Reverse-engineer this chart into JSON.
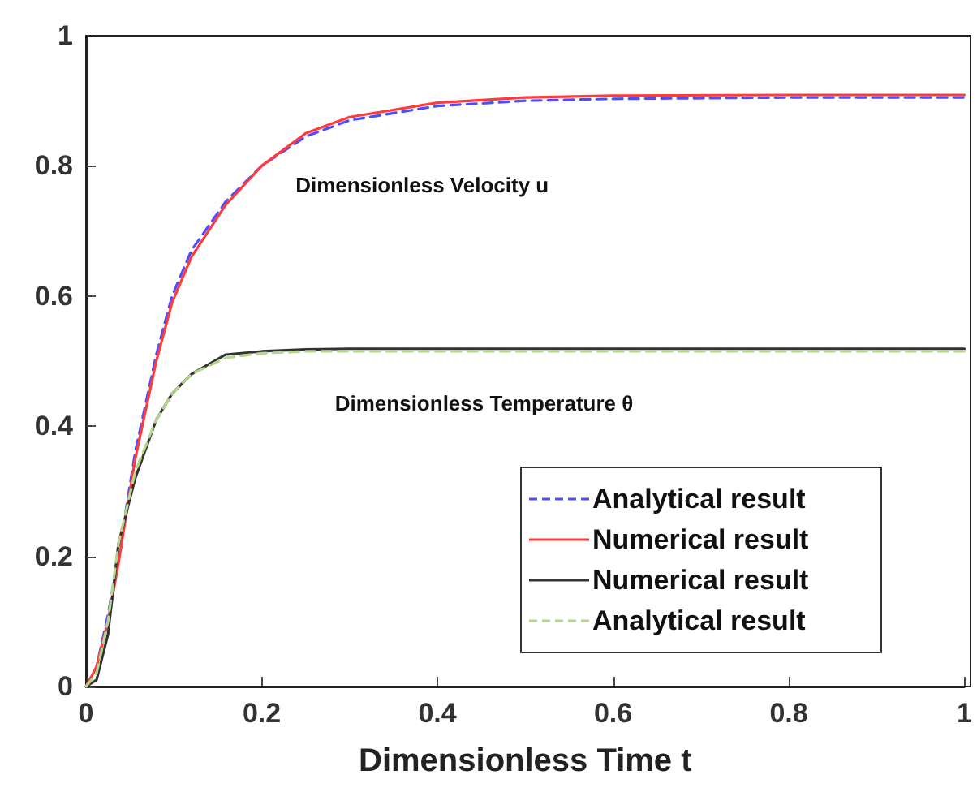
{
  "chart_data": {
    "type": "line",
    "xlabel": "Dimensionless Time t",
    "xlim": [
      0,
      1
    ],
    "xticks": [
      0,
      0.2,
      0.4,
      0.6,
      0.8,
      1
    ],
    "ylim": [
      0,
      1
    ],
    "yticks": [
      0,
      0.2,
      0.4,
      0.6,
      0.8,
      1
    ],
    "grid": false,
    "legend": "bottom right",
    "marker": "none",
    "x": [
      0,
      0.012,
      0.025,
      0.037,
      0.056,
      0.08,
      0.098,
      0.12,
      0.159,
      0.2,
      0.25,
      0.3,
      0.4,
      0.5,
      0.6,
      0.8,
      1.0
    ],
    "series": [
      {
        "name": "Analytical result",
        "color": "#4d4dff",
        "line_style": "dashed",
        "values": [
          0,
          0.03,
          0.11,
          0.2,
          0.36,
          0.51,
          0.6,
          0.67,
          0.745,
          0.8,
          0.845,
          0.87,
          0.892,
          0.9,
          0.903,
          0.905,
          0.905
        ]
      },
      {
        "name": "Numerical result",
        "color": "#ff3b3b",
        "line_style": "solid",
        "values": [
          0,
          0.03,
          0.1,
          0.19,
          0.35,
          0.5,
          0.59,
          0.66,
          0.74,
          0.8,
          0.85,
          0.875,
          0.897,
          0.905,
          0.908,
          0.909,
          0.909
        ]
      },
      {
        "name": "Numerical result",
        "color": "#333333",
        "line_style": "solid",
        "values": [
          0,
          0.01,
          0.08,
          0.22,
          0.32,
          0.41,
          0.45,
          0.48,
          0.51,
          0.515,
          0.518,
          0.519,
          0.519,
          0.519,
          0.519,
          0.519,
          0.519
        ]
      },
      {
        "name": "Analytical result",
        "color": "#b5d68c",
        "line_style": "dashed",
        "values": [
          0,
          0.02,
          0.1,
          0.22,
          0.33,
          0.41,
          0.45,
          0.48,
          0.505,
          0.512,
          0.515,
          0.515,
          0.515,
          0.515,
          0.515,
          0.515,
          0.515
        ]
      }
    ],
    "annotations": [
      "Dimensionless Velocity u",
      "Dimensionless Temperature θ"
    ]
  }
}
